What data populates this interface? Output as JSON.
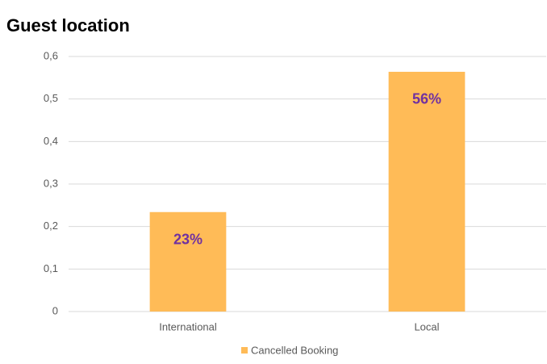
{
  "chart_data": {
    "type": "bar",
    "title": "Guest location",
    "categories": [
      "International",
      "Local"
    ],
    "series": [
      {
        "name": "Cancelled Booking",
        "color": "#ffbb57",
        "values": [
          0.234,
          0.564
        ],
        "value_labels": [
          "23%",
          "56%"
        ]
      }
    ],
    "ylim": [
      0,
      0.6
    ],
    "yticks": [
      0,
      {
        "value": 0.1,
        "label": "0,1"
      },
      {
        "value": 0.2,
        "label": "0,2"
      },
      {
        "value": 0.3,
        "label": "0,3"
      },
      {
        "value": 0.4,
        "label": "0,4"
      },
      {
        "value": 0.5,
        "label": "0,5"
      },
      {
        "value": 0.6,
        "label": "0,6"
      }
    ],
    "grid": true,
    "legend": "bottom"
  }
}
